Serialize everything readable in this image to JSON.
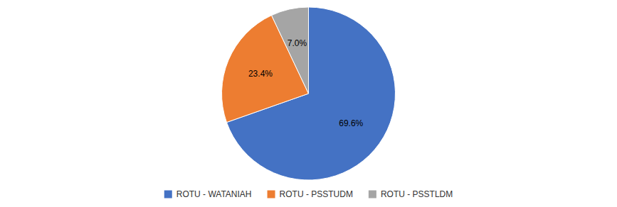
{
  "chart_data": {
    "type": "pie",
    "categories": [
      "ROTU - WATANIAH",
      "ROTU - PSSTUDM",
      "ROTU - PSSTLDM"
    ],
    "values": [
      69.6,
      23.4,
      7.0
    ],
    "value_labels": [
      "69.6%",
      "23.4%",
      "7.0%"
    ],
    "colors": [
      "#4472C4",
      "#ED7D31",
      "#A5A5A5"
    ],
    "data_labels": true,
    "legend": "bottom"
  }
}
